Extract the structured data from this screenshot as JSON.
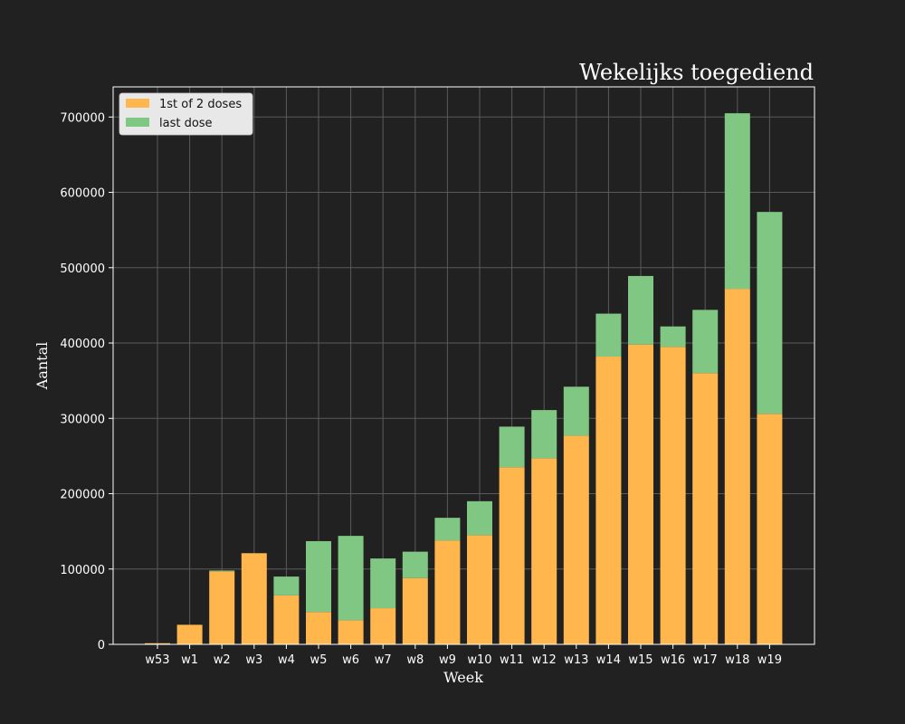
{
  "chart_data": {
    "type": "bar",
    "stacked": true,
    "title": "Wekelijks toegediend",
    "xlabel": "Week",
    "ylabel": "Aantal",
    "categories": [
      "w53",
      "w1",
      "w2",
      "w3",
      "w4",
      "w5",
      "w6",
      "w7",
      "w8",
      "w9",
      "w10",
      "w11",
      "w12",
      "w13",
      "w14",
      "w15",
      "w16",
      "w17",
      "w18",
      "w19"
    ],
    "series": [
      {
        "name": "1st of 2 doses",
        "color": "#ffb74d",
        "values": [
          1500,
          26000,
          97000,
          121000,
          65000,
          43000,
          32000,
          48000,
          88000,
          138000,
          145000,
          235000,
          247000,
          277000,
          382000,
          398000,
          395000,
          360000,
          472000,
          306000
        ]
      },
      {
        "name": "last dose",
        "color": "#81c784",
        "values": [
          0,
          0,
          1000,
          0,
          25000,
          94000,
          112000,
          66000,
          35000,
          30000,
          45000,
          54000,
          64000,
          65000,
          57000,
          91000,
          27000,
          84000,
          233000,
          268000
        ]
      }
    ],
    "ylim": [
      0,
      740000
    ],
    "yticks": [
      0,
      100000,
      200000,
      300000,
      400000,
      500000,
      600000,
      700000
    ],
    "grid": true,
    "legend_position": "top-left"
  },
  "colors": {
    "background": "#212121",
    "axes_edge": "#ffffff",
    "grid": "#5a5a5a",
    "text": "#ffffff"
  }
}
